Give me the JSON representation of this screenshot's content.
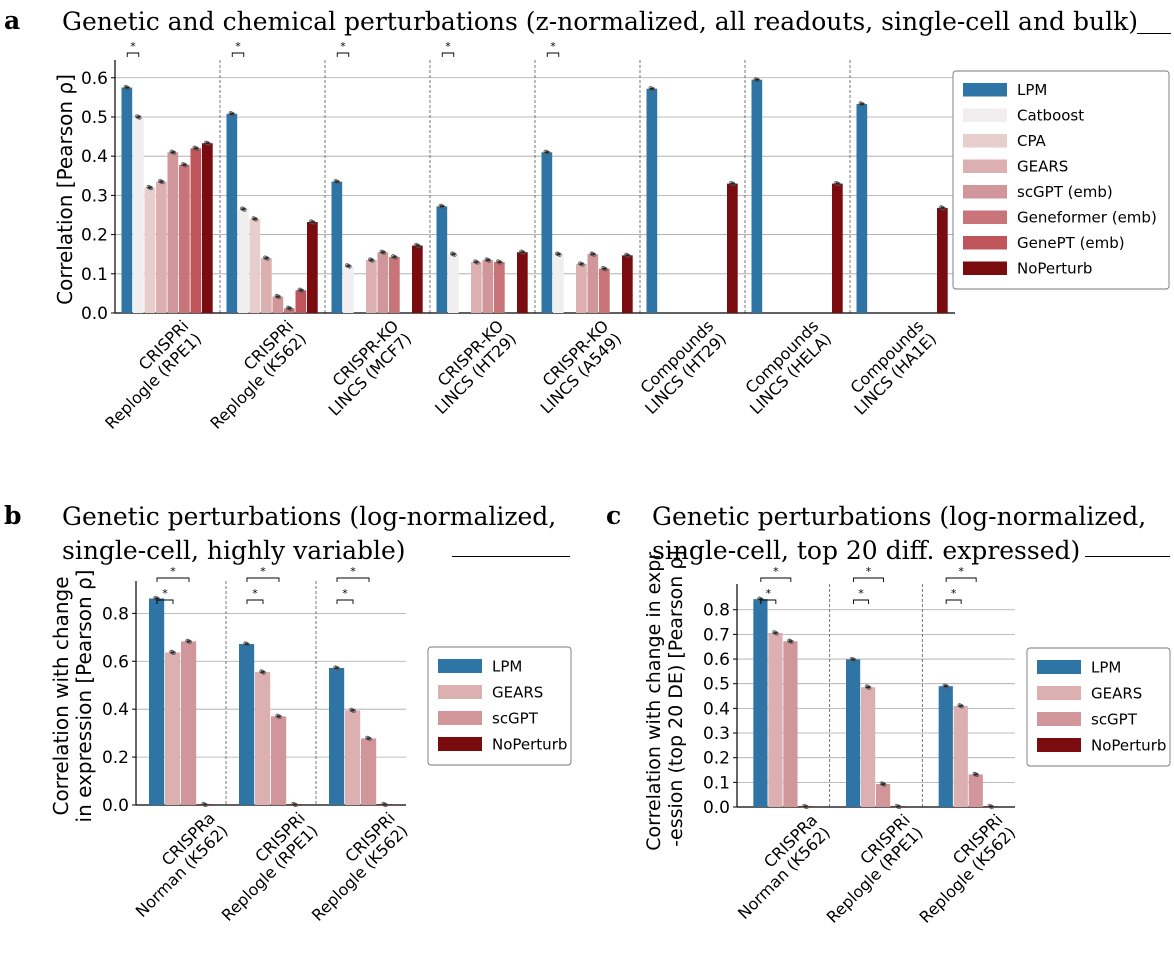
{
  "colors": {
    "LPM": "#2e75a6",
    "Catboost": "#f0eeee",
    "CPA": "#e8cdcd",
    "GEARS": "#dcafb1",
    "scGPT": "#d1969a",
    "scGPT (emb)": "#d1969a",
    "Geneformer (emb)": "#c87478",
    "GenePT (emb)": "#c0565c",
    "NoPerturb": "#7a0c10"
  },
  "panels": {
    "a": {
      "letter": "a",
      "title": "Genetic and chemical perturbations (z-normalized, all readouts, single-cell and bulk)",
      "significance_marker": "*"
    },
    "b": {
      "letter": "b",
      "title_line1": "Genetic perturbations (log-normalized,",
      "title_line2": "single-cell, highly variable)",
      "significance_marker": "*"
    },
    "c": {
      "letter": "c",
      "title_line1": "Genetic perturbations (log-normalized,",
      "title_line2": "single-cell, top 20 diff. expressed)",
      "significance_marker": "*"
    }
  },
  "chart_data": [
    {
      "type": "bar",
      "panel": "a",
      "ylabel": "Correlation [Pearson ρ]",
      "ylim": [
        0,
        0.63
      ],
      "yticks": [
        "0.0",
        "0.1",
        "0.2",
        "0.3",
        "0.4",
        "0.5",
        "0.6"
      ],
      "grid": true,
      "legend_position": "right",
      "categories": [
        [
          "CRISPRi",
          "Replogle (RPE1)"
        ],
        [
          "CRISPRi",
          "Replogle (K562)"
        ],
        [
          "CRISPR-KO",
          "LINCS (MCF7)"
        ],
        [
          "CRISPR-KO",
          "LINCS (HT29)"
        ],
        [
          "CRISPR-KO",
          "LINCS (A549)"
        ],
        [
          "Compounds",
          "LINCS (HT29)"
        ],
        [
          "Compounds",
          "LINCS (HELA)"
        ],
        [
          "Compounds",
          "LINCS (HA1E)"
        ]
      ],
      "series": [
        {
          "name": "LPM",
          "values": [
            0.575,
            0.508,
            0.335,
            0.272,
            0.41,
            0.572,
            0.595,
            0.533
          ]
        },
        {
          "name": "Catboost",
          "values": [
            0.5,
            0.265,
            0.12,
            0.15,
            0.15,
            null,
            null,
            null
          ]
        },
        {
          "name": "CPA",
          "values": [
            0.32,
            0.24,
            null,
            null,
            null,
            null,
            null,
            null
          ]
        },
        {
          "name": "GEARS",
          "values": [
            0.335,
            0.14,
            0.135,
            0.13,
            0.125,
            null,
            null,
            null
          ]
        },
        {
          "name": "scGPT (emb)",
          "values": [
            0.41,
            0.042,
            0.155,
            0.135,
            0.15,
            null,
            null,
            null
          ]
        },
        {
          "name": "Geneformer (emb)",
          "values": [
            0.378,
            0.012,
            0.143,
            0.13,
            0.113,
            null,
            null,
            null
          ]
        },
        {
          "name": "GenePT (emb)",
          "values": [
            0.42,
            0.058,
            null,
            null,
            null,
            null,
            null,
            null
          ]
        },
        {
          "name": "NoPerturb",
          "values": [
            0.433,
            0.232,
            0.172,
            0.155,
            0.147,
            0.33,
            0.33,
            0.268
          ]
        }
      ],
      "significance_groups": [
        0,
        1,
        2,
        3,
        4
      ]
    },
    {
      "type": "bar",
      "panel": "b",
      "ylabel_line1": "Correlation with change",
      "ylabel_line2": "in expression [Pearson ρ]",
      "ylim": [
        0,
        0.91
      ],
      "yticks": [
        "0.0",
        "0.2",
        "0.4",
        "0.6",
        "0.8"
      ],
      "grid": true,
      "legend_position": "right",
      "categories": [
        [
          "CRISPRa",
          "Norman (K562)"
        ],
        [
          "CRISPRi",
          "Replogle (RPE1)"
        ],
        [
          "CRISPRi",
          "Replogle (K562)"
        ]
      ],
      "series": [
        {
          "name": "LPM",
          "values": [
            0.862,
            0.672,
            0.572
          ]
        },
        {
          "name": "GEARS",
          "values": [
            0.637,
            0.555,
            0.395
          ]
        },
        {
          "name": "scGPT",
          "values": [
            0.683,
            0.37,
            0.278
          ]
        },
        {
          "name": "NoPerturb",
          "values": [
            0.002,
            0.002,
            0.002
          ]
        }
      ],
      "significance_groups": [
        0,
        1,
        2
      ]
    },
    {
      "type": "bar",
      "panel": "c",
      "ylabel_line1": "Correlation with change in expr-",
      "ylabel_line2": "-ession (top 20 DE) [Pearson ρ]",
      "ylim": [
        0,
        0.88
      ],
      "yticks": [
        "0.0",
        "0.1",
        "0.2",
        "0.3",
        "0.4",
        "0.5",
        "0.6",
        "0.7",
        "0.8"
      ],
      "grid": true,
      "legend_position": "right",
      "categories": [
        [
          "CRISPRa",
          "Norman (K562)"
        ],
        [
          "CRISPRi",
          "Replogle (RPE1)"
        ],
        [
          "CRISPRi",
          "Replogle (K562)"
        ]
      ],
      "series": [
        {
          "name": "LPM",
          "values": [
            0.843,
            0.598,
            0.49
          ]
        },
        {
          "name": "GEARS",
          "values": [
            0.706,
            0.486,
            0.41
          ]
        },
        {
          "name": "scGPT",
          "values": [
            0.672,
            0.093,
            0.132
          ]
        },
        {
          "name": "NoPerturb",
          "values": [
            0.002,
            0.002,
            0.002
          ]
        }
      ],
      "significance_groups": [
        0,
        1,
        2
      ]
    }
  ]
}
